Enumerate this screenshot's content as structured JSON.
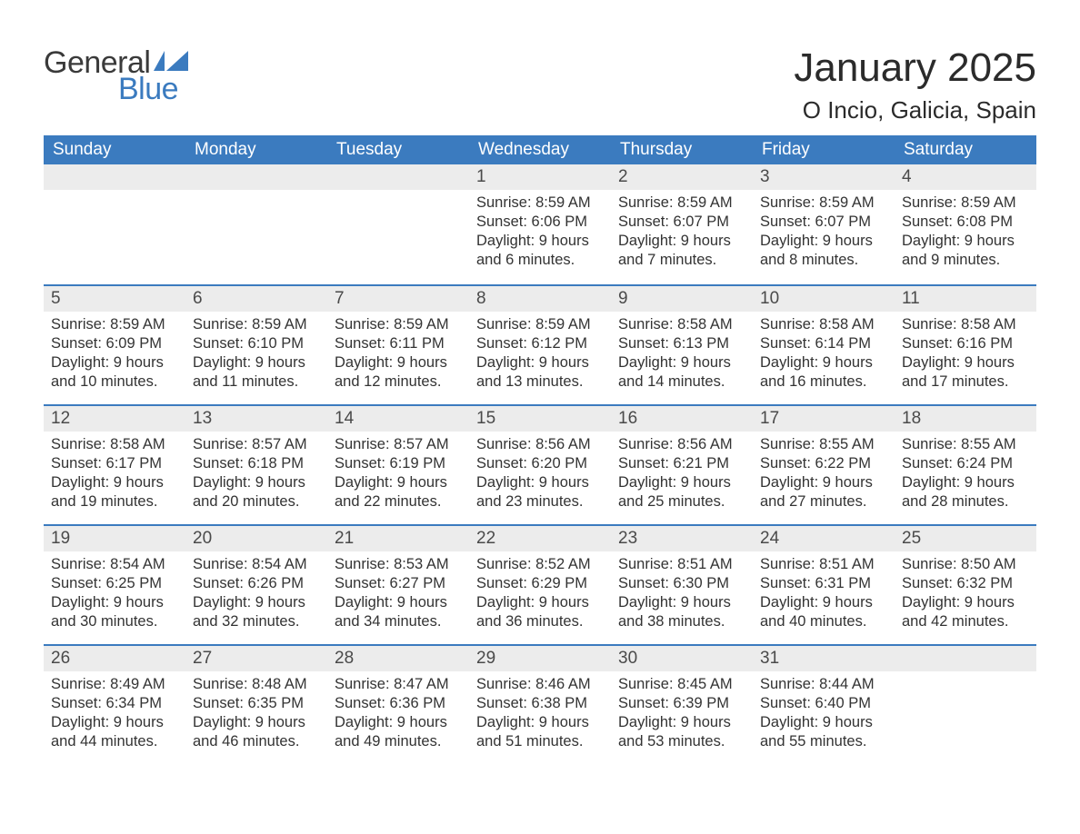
{
  "logo": {
    "general": "General",
    "blue": "Blue",
    "text_color_general": "#3a3a3a",
    "text_color_blue": "#3b7bbf",
    "flag_color": "#3b7bbf"
  },
  "title": "January 2025",
  "location": "O Incio, Galicia, Spain",
  "colors": {
    "header_bg": "#3b7bbf",
    "header_text": "#ffffff",
    "week_divider": "#3b7bbf",
    "daynum_band_bg": "#ececec",
    "body_text": "#333333",
    "daynum_text": "#4a4a4a",
    "page_bg": "#ffffff"
  },
  "typography": {
    "title_fontsize": 44,
    "location_fontsize": 26,
    "dayheader_fontsize": 19,
    "daynum_fontsize": 19,
    "body_fontsize": 16.5,
    "font_family": "Arial"
  },
  "day_headers": [
    "Sunday",
    "Monday",
    "Tuesday",
    "Wednesday",
    "Thursday",
    "Friday",
    "Saturday"
  ],
  "weeks": [
    [
      {
        "blank": true
      },
      {
        "blank": true
      },
      {
        "blank": true
      },
      {
        "day": "1",
        "sunrise": "Sunrise: 8:59 AM",
        "sunset": "Sunset: 6:06 PM",
        "daylight1": "Daylight: 9 hours",
        "daylight2": "and 6 minutes."
      },
      {
        "day": "2",
        "sunrise": "Sunrise: 8:59 AM",
        "sunset": "Sunset: 6:07 PM",
        "daylight1": "Daylight: 9 hours",
        "daylight2": "and 7 minutes."
      },
      {
        "day": "3",
        "sunrise": "Sunrise: 8:59 AM",
        "sunset": "Sunset: 6:07 PM",
        "daylight1": "Daylight: 9 hours",
        "daylight2": "and 8 minutes."
      },
      {
        "day": "4",
        "sunrise": "Sunrise: 8:59 AM",
        "sunset": "Sunset: 6:08 PM",
        "daylight1": "Daylight: 9 hours",
        "daylight2": "and 9 minutes."
      }
    ],
    [
      {
        "day": "5",
        "sunrise": "Sunrise: 8:59 AM",
        "sunset": "Sunset: 6:09 PM",
        "daylight1": "Daylight: 9 hours",
        "daylight2": "and 10 minutes."
      },
      {
        "day": "6",
        "sunrise": "Sunrise: 8:59 AM",
        "sunset": "Sunset: 6:10 PM",
        "daylight1": "Daylight: 9 hours",
        "daylight2": "and 11 minutes."
      },
      {
        "day": "7",
        "sunrise": "Sunrise: 8:59 AM",
        "sunset": "Sunset: 6:11 PM",
        "daylight1": "Daylight: 9 hours",
        "daylight2": "and 12 minutes."
      },
      {
        "day": "8",
        "sunrise": "Sunrise: 8:59 AM",
        "sunset": "Sunset: 6:12 PM",
        "daylight1": "Daylight: 9 hours",
        "daylight2": "and 13 minutes."
      },
      {
        "day": "9",
        "sunrise": "Sunrise: 8:58 AM",
        "sunset": "Sunset: 6:13 PM",
        "daylight1": "Daylight: 9 hours",
        "daylight2": "and 14 minutes."
      },
      {
        "day": "10",
        "sunrise": "Sunrise: 8:58 AM",
        "sunset": "Sunset: 6:14 PM",
        "daylight1": "Daylight: 9 hours",
        "daylight2": "and 16 minutes."
      },
      {
        "day": "11",
        "sunrise": "Sunrise: 8:58 AM",
        "sunset": "Sunset: 6:16 PM",
        "daylight1": "Daylight: 9 hours",
        "daylight2": "and 17 minutes."
      }
    ],
    [
      {
        "day": "12",
        "sunrise": "Sunrise: 8:58 AM",
        "sunset": "Sunset: 6:17 PM",
        "daylight1": "Daylight: 9 hours",
        "daylight2": "and 19 minutes."
      },
      {
        "day": "13",
        "sunrise": "Sunrise: 8:57 AM",
        "sunset": "Sunset: 6:18 PM",
        "daylight1": "Daylight: 9 hours",
        "daylight2": "and 20 minutes."
      },
      {
        "day": "14",
        "sunrise": "Sunrise: 8:57 AM",
        "sunset": "Sunset: 6:19 PM",
        "daylight1": "Daylight: 9 hours",
        "daylight2": "and 22 minutes."
      },
      {
        "day": "15",
        "sunrise": "Sunrise: 8:56 AM",
        "sunset": "Sunset: 6:20 PM",
        "daylight1": "Daylight: 9 hours",
        "daylight2": "and 23 minutes."
      },
      {
        "day": "16",
        "sunrise": "Sunrise: 8:56 AM",
        "sunset": "Sunset: 6:21 PM",
        "daylight1": "Daylight: 9 hours",
        "daylight2": "and 25 minutes."
      },
      {
        "day": "17",
        "sunrise": "Sunrise: 8:55 AM",
        "sunset": "Sunset: 6:22 PM",
        "daylight1": "Daylight: 9 hours",
        "daylight2": "and 27 minutes."
      },
      {
        "day": "18",
        "sunrise": "Sunrise: 8:55 AM",
        "sunset": "Sunset: 6:24 PM",
        "daylight1": "Daylight: 9 hours",
        "daylight2": "and 28 minutes."
      }
    ],
    [
      {
        "day": "19",
        "sunrise": "Sunrise: 8:54 AM",
        "sunset": "Sunset: 6:25 PM",
        "daylight1": "Daylight: 9 hours",
        "daylight2": "and 30 minutes."
      },
      {
        "day": "20",
        "sunrise": "Sunrise: 8:54 AM",
        "sunset": "Sunset: 6:26 PM",
        "daylight1": "Daylight: 9 hours",
        "daylight2": "and 32 minutes."
      },
      {
        "day": "21",
        "sunrise": "Sunrise: 8:53 AM",
        "sunset": "Sunset: 6:27 PM",
        "daylight1": "Daylight: 9 hours",
        "daylight2": "and 34 minutes."
      },
      {
        "day": "22",
        "sunrise": "Sunrise: 8:52 AM",
        "sunset": "Sunset: 6:29 PM",
        "daylight1": "Daylight: 9 hours",
        "daylight2": "and 36 minutes."
      },
      {
        "day": "23",
        "sunrise": "Sunrise: 8:51 AM",
        "sunset": "Sunset: 6:30 PM",
        "daylight1": "Daylight: 9 hours",
        "daylight2": "and 38 minutes."
      },
      {
        "day": "24",
        "sunrise": "Sunrise: 8:51 AM",
        "sunset": "Sunset: 6:31 PM",
        "daylight1": "Daylight: 9 hours",
        "daylight2": "and 40 minutes."
      },
      {
        "day": "25",
        "sunrise": "Sunrise: 8:50 AM",
        "sunset": "Sunset: 6:32 PM",
        "daylight1": "Daylight: 9 hours",
        "daylight2": "and 42 minutes."
      }
    ],
    [
      {
        "day": "26",
        "sunrise": "Sunrise: 8:49 AM",
        "sunset": "Sunset: 6:34 PM",
        "daylight1": "Daylight: 9 hours",
        "daylight2": "and 44 minutes."
      },
      {
        "day": "27",
        "sunrise": "Sunrise: 8:48 AM",
        "sunset": "Sunset: 6:35 PM",
        "daylight1": "Daylight: 9 hours",
        "daylight2": "and 46 minutes."
      },
      {
        "day": "28",
        "sunrise": "Sunrise: 8:47 AM",
        "sunset": "Sunset: 6:36 PM",
        "daylight1": "Daylight: 9 hours",
        "daylight2": "and 49 minutes."
      },
      {
        "day": "29",
        "sunrise": "Sunrise: 8:46 AM",
        "sunset": "Sunset: 6:38 PM",
        "daylight1": "Daylight: 9 hours",
        "daylight2": "and 51 minutes."
      },
      {
        "day": "30",
        "sunrise": "Sunrise: 8:45 AM",
        "sunset": "Sunset: 6:39 PM",
        "daylight1": "Daylight: 9 hours",
        "daylight2": "and 53 minutes."
      },
      {
        "day": "31",
        "sunrise": "Sunrise: 8:44 AM",
        "sunset": "Sunset: 6:40 PM",
        "daylight1": "Daylight: 9 hours",
        "daylight2": "and 55 minutes."
      },
      {
        "blank": true
      }
    ]
  ]
}
